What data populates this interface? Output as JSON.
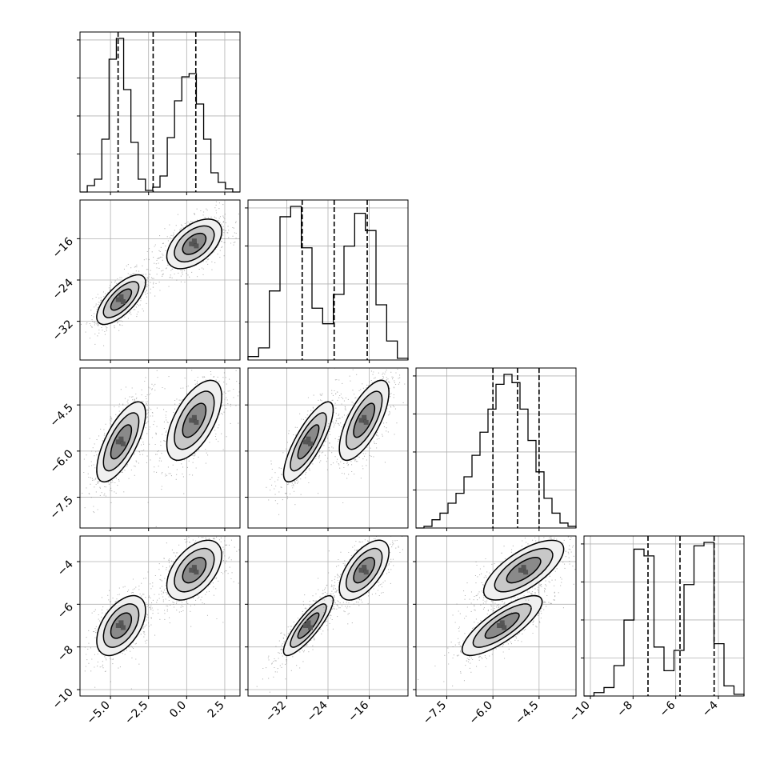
{
  "colors": {
    "line": "#000000",
    "grid": "#b0b0b0",
    "points": "#808080",
    "fill_low": "#f0f0f0",
    "fill_mid": "#c8c8c8",
    "fill_high": "#8a8a8a",
    "background": "#ffffff"
  },
  "chart_data": {
    "type": "corner",
    "title": "",
    "grid": true,
    "variables": [
      {
        "range": [
          -7,
          3.5
        ],
        "ticks": [
          -5.0,
          -2.5,
          0.0,
          2.5
        ],
        "tick_labels": [
          "−5.0",
          "−2.5",
          "0.0",
          "2.5"
        ],
        "quantiles": [
          -4.5,
          -2.2,
          0.6
        ],
        "hist_counts": [
          0.0,
          0.04,
          0.08,
          0.33,
          0.83,
          0.96,
          0.64,
          0.31,
          0.08,
          0.01,
          0.03,
          0.1,
          0.34,
          0.57,
          0.72,
          0.74,
          0.55,
          0.33,
          0.12,
          0.06,
          0.02,
          0.0
        ]
      },
      {
        "range": [
          -39.5,
          -8.5
        ],
        "ticks": [
          -32,
          -24,
          -16
        ],
        "tick_labels": [
          "−32",
          "−24",
          "−16"
        ],
        "quantiles": [
          -29,
          -22.8,
          -16.4
        ],
        "hist_counts": [
          0.02,
          0.07,
          0.4,
          0.83,
          0.89,
          0.65,
          0.3,
          0.21,
          0.38,
          0.66,
          0.85,
          0.75,
          0.32,
          0.11,
          0.01
        ]
      },
      {
        "range": [
          -8.5,
          -3.3
        ],
        "ticks": [
          -7.5,
          -6.0,
          -4.5
        ],
        "tick_labels": [
          "−7.5",
          "−6.0",
          "−4.5"
        ],
        "quantiles": [
          -6.0,
          -5.2,
          -4.5
        ],
        "hist_counts": [
          0.0,
          0.01,
          0.05,
          0.09,
          0.15,
          0.21,
          0.31,
          0.44,
          0.58,
          0.72,
          0.87,
          0.93,
          0.88,
          0.72,
          0.53,
          0.34,
          0.18,
          0.09,
          0.03,
          0.01
        ]
      },
      {
        "range": [
          -10.3,
          -2.8
        ],
        "ticks": [
          -10,
          -8,
          -6,
          -4
        ],
        "tick_labels": [
          "−10",
          "−8",
          "−6",
          "−4"
        ],
        "quantiles": [
          -7.3,
          -5.8,
          -4.2
        ],
        "hist_counts": [
          0.0,
          0.02,
          0.05,
          0.18,
          0.45,
          0.87,
          0.83,
          0.29,
          0.15,
          0.27,
          0.66,
          0.89,
          0.91,
          0.31,
          0.06,
          0.01
        ]
      }
    ],
    "modes": [
      {
        "center": [
          -4.3,
          -27.8,
          -5.7,
          -7.0
        ],
        "spread": [
          0.8,
          2.4,
          0.65,
          0.7
        ]
      },
      {
        "center": [
          0.5,
          -17.0,
          -5.0,
          -4.4
        ],
        "spread": [
          0.9,
          2.4,
          0.65,
          0.7
        ]
      }
    ],
    "pairs": [
      {
        "x": 0,
        "y": 1,
        "modes": [
          {
            "mode": 0,
            "rho": 0.7
          },
          {
            "mode": 1,
            "rho": 0.5
          }
        ]
      },
      {
        "x": 0,
        "y": 2,
        "modes": [
          {
            "mode": 0,
            "rho": 0.7
          },
          {
            "mode": 1,
            "rho": 0.6
          }
        ]
      },
      {
        "x": 1,
        "y": 2,
        "modes": [
          {
            "mode": 0,
            "rho": 0.8
          },
          {
            "mode": 1,
            "rho": 0.7
          }
        ]
      },
      {
        "x": 0,
        "y": 3,
        "modes": [
          {
            "mode": 0,
            "rho": 0.5
          },
          {
            "mode": 1,
            "rho": 0.5
          }
        ]
      },
      {
        "x": 1,
        "y": 3,
        "modes": [
          {
            "mode": 0,
            "rho": 0.85
          },
          {
            "mode": 1,
            "rho": 0.6
          }
        ]
      },
      {
        "x": 2,
        "y": 3,
        "modes": [
          {
            "mode": 0,
            "rho": 0.8
          },
          {
            "mode": 1,
            "rho": 0.7
          }
        ]
      }
    ]
  }
}
